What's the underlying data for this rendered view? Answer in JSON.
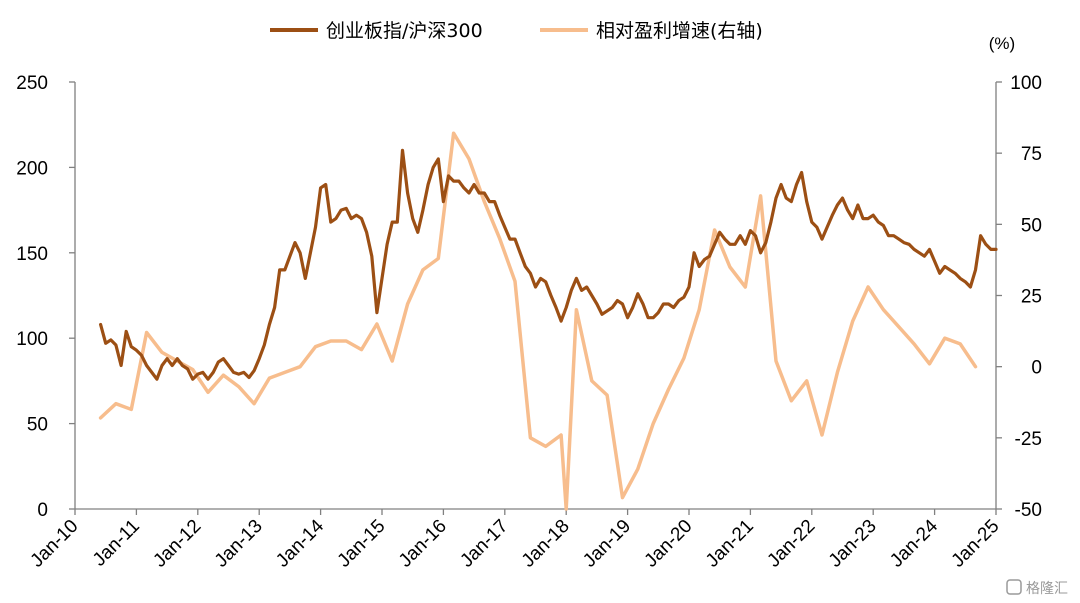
{
  "chart_data": {
    "type": "line",
    "legend": {
      "position": "top-center"
    },
    "right_axis_unit": "(%)",
    "x_ticks": [
      "Jan-10",
      "Jan-11",
      "Jan-12",
      "Jan-13",
      "Jan-14",
      "Jan-15",
      "Jan-16",
      "Jan-17",
      "Jan-18",
      "Jan-19",
      "Jan-20",
      "Jan-21",
      "Jan-22",
      "Jan-23",
      "Jan-24",
      "Jan-25"
    ],
    "y_left": {
      "ticks": [
        0,
        50,
        100,
        150,
        200,
        250
      ],
      "range": [
        0,
        250
      ]
    },
    "y_right": {
      "ticks": [
        -50,
        -25,
        0,
        25,
        50,
        75,
        100
      ],
      "range": [
        -50,
        100
      ]
    },
    "grid": false,
    "series": [
      {
        "name": "创业板指/沪深300",
        "axis": "left",
        "color": "#9c4f14",
        "points": [
          [
            "2010-06",
            108
          ],
          [
            "2010-07",
            97
          ],
          [
            "2010-08",
            99
          ],
          [
            "2010-09",
            96
          ],
          [
            "2010-10",
            84
          ],
          [
            "2010-11",
            104
          ],
          [
            "2010-12",
            95
          ],
          [
            "2011-01",
            93
          ],
          [
            "2011-02",
            90
          ],
          [
            "2011-03",
            84
          ],
          [
            "2011-04",
            80
          ],
          [
            "2011-05",
            76
          ],
          [
            "2011-06",
            84
          ],
          [
            "2011-07",
            88
          ],
          [
            "2011-08",
            84
          ],
          [
            "2011-09",
            88
          ],
          [
            "2011-10",
            84
          ],
          [
            "2011-11",
            82
          ],
          [
            "2011-12",
            76
          ],
          [
            "2012-01",
            79
          ],
          [
            "2012-02",
            80
          ],
          [
            "2012-03",
            76
          ],
          [
            "2012-04",
            80
          ],
          [
            "2012-05",
            86
          ],
          [
            "2012-06",
            88
          ],
          [
            "2012-07",
            84
          ],
          [
            "2012-08",
            80
          ],
          [
            "2012-09",
            79
          ],
          [
            "2012-10",
            80
          ],
          [
            "2012-11",
            77
          ],
          [
            "2012-12",
            81
          ],
          [
            "2013-01",
            88
          ],
          [
            "2013-02",
            96
          ],
          [
            "2013-03",
            108
          ],
          [
            "2013-04",
            118
          ],
          [
            "2013-05",
            140
          ],
          [
            "2013-06",
            140
          ],
          [
            "2013-07",
            148
          ],
          [
            "2013-08",
            156
          ],
          [
            "2013-09",
            150
          ],
          [
            "2013-10",
            135
          ],
          [
            "2013-11",
            150
          ],
          [
            "2013-12",
            165
          ],
          [
            "2014-01",
            188
          ],
          [
            "2014-02",
            190
          ],
          [
            "2014-03",
            168
          ],
          [
            "2014-04",
            170
          ],
          [
            "2014-05",
            175
          ],
          [
            "2014-06",
            176
          ],
          [
            "2014-07",
            170
          ],
          [
            "2014-08",
            172
          ],
          [
            "2014-09",
            170
          ],
          [
            "2014-10",
            162
          ],
          [
            "2014-11",
            148
          ],
          [
            "2014-12",
            115
          ],
          [
            "2015-01",
            135
          ],
          [
            "2015-02",
            155
          ],
          [
            "2015-03",
            168
          ],
          [
            "2015-04",
            168
          ],
          [
            "2015-05",
            210
          ],
          [
            "2015-06",
            185
          ],
          [
            "2015-07",
            170
          ],
          [
            "2015-08",
            162
          ],
          [
            "2015-09",
            175
          ],
          [
            "2015-10",
            190
          ],
          [
            "2015-11",
            200
          ],
          [
            "2015-12",
            205
          ],
          [
            "2016-01",
            180
          ],
          [
            "2016-02",
            195
          ],
          [
            "2016-03",
            192
          ],
          [
            "2016-04",
            192
          ],
          [
            "2016-05",
            188
          ],
          [
            "2016-06",
            185
          ],
          [
            "2016-07",
            190
          ],
          [
            "2016-08",
            185
          ],
          [
            "2016-09",
            185
          ],
          [
            "2016-10",
            180
          ],
          [
            "2016-11",
            180
          ],
          [
            "2016-12",
            172
          ],
          [
            "2017-01",
            165
          ],
          [
            "2017-02",
            158
          ],
          [
            "2017-03",
            158
          ],
          [
            "2017-04",
            150
          ],
          [
            "2017-05",
            142
          ],
          [
            "2017-06",
            138
          ],
          [
            "2017-07",
            130
          ],
          [
            "2017-08",
            135
          ],
          [
            "2017-09",
            133
          ],
          [
            "2017-10",
            125
          ],
          [
            "2017-11",
            118
          ],
          [
            "2017-12",
            110
          ],
          [
            "2018-01",
            118
          ],
          [
            "2018-02",
            128
          ],
          [
            "2018-03",
            135
          ],
          [
            "2018-04",
            128
          ],
          [
            "2018-05",
            130
          ],
          [
            "2018-06",
            125
          ],
          [
            "2018-07",
            120
          ],
          [
            "2018-08",
            114
          ],
          [
            "2018-09",
            116
          ],
          [
            "2018-10",
            118
          ],
          [
            "2018-11",
            122
          ],
          [
            "2018-12",
            120
          ],
          [
            "2019-01",
            112
          ],
          [
            "2019-02",
            118
          ],
          [
            "2019-03",
            126
          ],
          [
            "2019-04",
            120
          ],
          [
            "2019-05",
            112
          ],
          [
            "2019-06",
            112
          ],
          [
            "2019-07",
            115
          ],
          [
            "2019-08",
            120
          ],
          [
            "2019-09",
            120
          ],
          [
            "2019-10",
            118
          ],
          [
            "2019-11",
            122
          ],
          [
            "2019-12",
            124
          ],
          [
            "2020-01",
            130
          ],
          [
            "2020-02",
            150
          ],
          [
            "2020-03",
            142
          ],
          [
            "2020-04",
            146
          ],
          [
            "2020-05",
            148
          ],
          [
            "2020-06",
            155
          ],
          [
            "2020-07",
            162
          ],
          [
            "2020-08",
            158
          ],
          [
            "2020-09",
            155
          ],
          [
            "2020-10",
            155
          ],
          [
            "2020-11",
            160
          ],
          [
            "2020-12",
            155
          ],
          [
            "2021-01",
            163
          ],
          [
            "2021-02",
            160
          ],
          [
            "2021-03",
            150
          ],
          [
            "2021-04",
            156
          ],
          [
            "2021-05",
            168
          ],
          [
            "2021-06",
            182
          ],
          [
            "2021-07",
            190
          ],
          [
            "2021-08",
            182
          ],
          [
            "2021-09",
            180
          ],
          [
            "2021-10",
            190
          ],
          [
            "2021-11",
            197
          ],
          [
            "2021-12",
            180
          ],
          [
            "2022-01",
            168
          ],
          [
            "2022-02",
            165
          ],
          [
            "2022-03",
            158
          ],
          [
            "2022-04",
            165
          ],
          [
            "2022-05",
            172
          ],
          [
            "2022-06",
            178
          ],
          [
            "2022-07",
            182
          ],
          [
            "2022-08",
            175
          ],
          [
            "2022-09",
            170
          ],
          [
            "2022-10",
            178
          ],
          [
            "2022-11",
            170
          ],
          [
            "2022-12",
            170
          ],
          [
            "2023-01",
            172
          ],
          [
            "2023-02",
            168
          ],
          [
            "2023-03",
            166
          ],
          [
            "2023-04",
            160
          ],
          [
            "2023-05",
            160
          ],
          [
            "2023-06",
            158
          ],
          [
            "2023-07",
            156
          ],
          [
            "2023-08",
            155
          ],
          [
            "2023-09",
            152
          ],
          [
            "2023-10",
            150
          ],
          [
            "2023-11",
            148
          ],
          [
            "2023-12",
            152
          ],
          [
            "2024-01",
            145
          ],
          [
            "2024-02",
            138
          ],
          [
            "2024-03",
            142
          ],
          [
            "2024-04",
            140
          ],
          [
            "2024-05",
            138
          ],
          [
            "2024-06",
            135
          ],
          [
            "2024-07",
            133
          ],
          [
            "2024-08",
            130
          ],
          [
            "2024-09",
            140
          ],
          [
            "2024-10",
            160
          ],
          [
            "2024-11",
            155
          ],
          [
            "2024-12",
            152
          ],
          [
            "2025-01",
            152
          ]
        ]
      },
      {
        "name": "相对盈利增速(右轴)",
        "axis": "right",
        "color": "#f7bd8d",
        "points": [
          [
            "2010-06",
            -18
          ],
          [
            "2010-09",
            -13
          ],
          [
            "2010-12",
            -15
          ],
          [
            "2011-03",
            12
          ],
          [
            "2011-06",
            5
          ],
          [
            "2011-09",
            2
          ],
          [
            "2011-12",
            -1
          ],
          [
            "2012-03",
            -9
          ],
          [
            "2012-06",
            -3
          ],
          [
            "2012-09",
            -7
          ],
          [
            "2012-12",
            -13
          ],
          [
            "2013-03",
            -4
          ],
          [
            "2013-06",
            -2
          ],
          [
            "2013-09",
            0
          ],
          [
            "2013-12",
            7
          ],
          [
            "2014-03",
            9
          ],
          [
            "2014-06",
            9
          ],
          [
            "2014-09",
            6
          ],
          [
            "2014-12",
            15
          ],
          [
            "2015-03",
            2
          ],
          [
            "2015-06",
            22
          ],
          [
            "2015-09",
            34
          ],
          [
            "2015-12",
            38
          ],
          [
            "2016-03",
            82
          ],
          [
            "2016-06",
            73
          ],
          [
            "2016-09",
            58
          ],
          [
            "2016-12",
            45
          ],
          [
            "2017-03",
            30
          ],
          [
            "2017-06",
            -25
          ],
          [
            "2017-09",
            -28
          ],
          [
            "2017-12",
            -24
          ],
          [
            "2018-01",
            -50
          ],
          [
            "2018-03",
            20
          ],
          [
            "2018-06",
            -5
          ],
          [
            "2018-09",
            -10
          ],
          [
            "2018-12",
            -46
          ],
          [
            "2019-03",
            -36
          ],
          [
            "2019-06",
            -20
          ],
          [
            "2019-09",
            -8
          ],
          [
            "2019-12",
            3
          ],
          [
            "2020-03",
            20
          ],
          [
            "2020-06",
            48
          ],
          [
            "2020-09",
            35
          ],
          [
            "2020-12",
            28
          ],
          [
            "2021-03",
            60
          ],
          [
            "2021-06",
            2
          ],
          [
            "2021-09",
            -12
          ],
          [
            "2021-12",
            -5
          ],
          [
            "2022-03",
            -24
          ],
          [
            "2022-06",
            -2
          ],
          [
            "2022-09",
            16
          ],
          [
            "2022-12",
            28
          ],
          [
            "2023-03",
            20
          ],
          [
            "2023-06",
            14
          ],
          [
            "2023-09",
            8
          ],
          [
            "2023-12",
            1
          ],
          [
            "2024-03",
            10
          ],
          [
            "2024-06",
            8
          ],
          [
            "2024-09",
            0
          ]
        ]
      }
    ]
  },
  "watermark": "格隆汇"
}
